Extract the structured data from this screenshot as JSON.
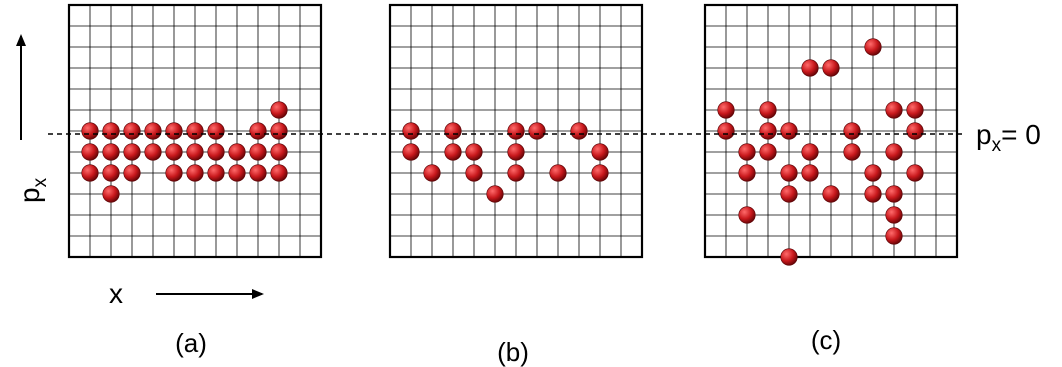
{
  "figure": {
    "axis_labels": {
      "vertical": {
        "main": "p",
        "sub": "x"
      },
      "horizontal": "x"
    },
    "zero_line_label": {
      "main": "p",
      "sub": "x",
      "rest": "= 0"
    },
    "colors": {
      "particle": "#c8181c",
      "particle_highlight": "#ff6b6b",
      "particle_shadow": "#5a0204",
      "grid": "#000000"
    },
    "panels": [
      {
        "id": "a",
        "label": "(a)",
        "particles": [
          [
            10,
            7
          ],
          [
            1,
            6
          ],
          [
            2,
            6
          ],
          [
            3,
            6
          ],
          [
            4,
            6
          ],
          [
            5,
            6
          ],
          [
            6,
            6
          ],
          [
            7,
            6
          ],
          [
            9,
            6
          ],
          [
            10,
            6
          ],
          [
            1,
            5
          ],
          [
            2,
            5
          ],
          [
            3,
            5
          ],
          [
            4,
            5
          ],
          [
            5,
            5
          ],
          [
            6,
            5
          ],
          [
            7,
            5
          ],
          [
            8,
            5
          ],
          [
            9,
            5
          ],
          [
            10,
            5
          ],
          [
            1,
            4
          ],
          [
            2,
            4
          ],
          [
            3,
            4
          ],
          [
            5,
            4
          ],
          [
            6,
            4
          ],
          [
            7,
            4
          ],
          [
            8,
            4
          ],
          [
            9,
            4
          ],
          [
            10,
            4
          ],
          [
            2,
            3
          ]
        ]
      },
      {
        "id": "b",
        "label": "(b)",
        "particles": [
          [
            1,
            6
          ],
          [
            3,
            6
          ],
          [
            6,
            6
          ],
          [
            7,
            6
          ],
          [
            9,
            6
          ],
          [
            1,
            5
          ],
          [
            3,
            5
          ],
          [
            4,
            5
          ],
          [
            6,
            5
          ],
          [
            10,
            5
          ],
          [
            2,
            4
          ],
          [
            4,
            4
          ],
          [
            6,
            4
          ],
          [
            8,
            4
          ],
          [
            10,
            4
          ],
          [
            5,
            3
          ]
        ]
      },
      {
        "id": "c",
        "label": "(c)",
        "particles": [
          [
            8,
            10
          ],
          [
            5,
            9
          ],
          [
            6,
            9
          ],
          [
            1,
            7
          ],
          [
            3,
            7
          ],
          [
            9,
            7
          ],
          [
            10,
            7
          ],
          [
            1,
            6
          ],
          [
            3,
            6
          ],
          [
            4,
            6
          ],
          [
            7,
            6
          ],
          [
            10,
            6
          ],
          [
            2,
            5
          ],
          [
            3,
            5
          ],
          [
            5,
            5
          ],
          [
            7,
            5
          ],
          [
            9,
            5
          ],
          [
            2,
            4
          ],
          [
            4,
            4
          ],
          [
            5,
            4
          ],
          [
            8,
            4
          ],
          [
            10,
            4
          ],
          [
            4,
            3
          ],
          [
            6,
            3
          ],
          [
            8,
            3
          ],
          [
            9,
            3
          ],
          [
            2,
            2
          ],
          [
            9,
            2
          ],
          [
            9,
            1
          ],
          [
            4,
            0
          ]
        ]
      }
    ]
  }
}
